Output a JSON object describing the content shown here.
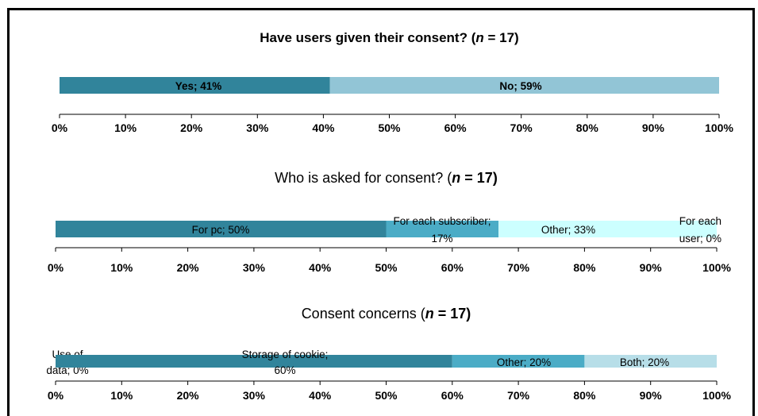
{
  "chart_data": [
    {
      "type": "bar",
      "orientation": "horizontal-stacked",
      "title_text": "Have users given their consent? (",
      "title_n": "n",
      "title_tail": " = 17)",
      "series": [
        {
          "name": "Yes",
          "value": 41,
          "label": "Yes; 41%",
          "color": "#31849B"
        },
        {
          "name": "No",
          "value": 59,
          "label": "No; 59%",
          "color": "#92C5D6"
        }
      ],
      "xlim": [
        0,
        100
      ],
      "ticks": [
        "0%",
        "10%",
        "20%",
        "30%",
        "40%",
        "50%",
        "60%",
        "70%",
        "80%",
        "90%",
        "100%"
      ]
    },
    {
      "type": "bar",
      "orientation": "horizontal-stacked",
      "title_text": "Who is asked for consent? (",
      "title_n": "n",
      "title_tail": " = 17)",
      "series": [
        {
          "name": "For pc",
          "value": 50,
          "label": "For pc; 50%",
          "color": "#31849B"
        },
        {
          "name": "For each subscriber",
          "value": 17,
          "label_lines": [
            "For each subscriber;",
            "17%"
          ],
          "color": "#4BACC6"
        },
        {
          "name": "Other",
          "value": 33,
          "label": "Other; 33%",
          "color": "#CCFFFF"
        },
        {
          "name": "For each user",
          "value": 0,
          "label_lines": [
            "For each",
            "user; 0%"
          ],
          "color": "#B7DEE8"
        }
      ],
      "xlim": [
        0,
        100
      ],
      "ticks": [
        "0%",
        "10%",
        "20%",
        "30%",
        "40%",
        "50%",
        "60%",
        "70%",
        "80%",
        "90%",
        "100%"
      ]
    },
    {
      "type": "bar",
      "orientation": "horizontal-stacked",
      "title_text": "Consent concerns (",
      "title_n": "n",
      "title_tail": " = 17)",
      "series": [
        {
          "name": "Use of data",
          "value": 0,
          "label_lines": [
            "Use of",
            "data; 0%"
          ],
          "color": "#215968"
        },
        {
          "name": "Storage of cookie",
          "value": 60,
          "label_lines": [
            "Storage of cookie;",
            "60%"
          ],
          "color": "#31849B"
        },
        {
          "name": "Other",
          "value": 20,
          "label": "Other; 20%",
          "color": "#4BACC6"
        },
        {
          "name": "Both",
          "value": 20,
          "label": "Both; 20%",
          "color": "#B7DEE8"
        }
      ],
      "xlim": [
        0,
        100
      ],
      "ticks": [
        "0%",
        "10%",
        "20%",
        "30%",
        "40%",
        "50%",
        "60%",
        "70%",
        "80%",
        "90%",
        "100%"
      ]
    }
  ]
}
